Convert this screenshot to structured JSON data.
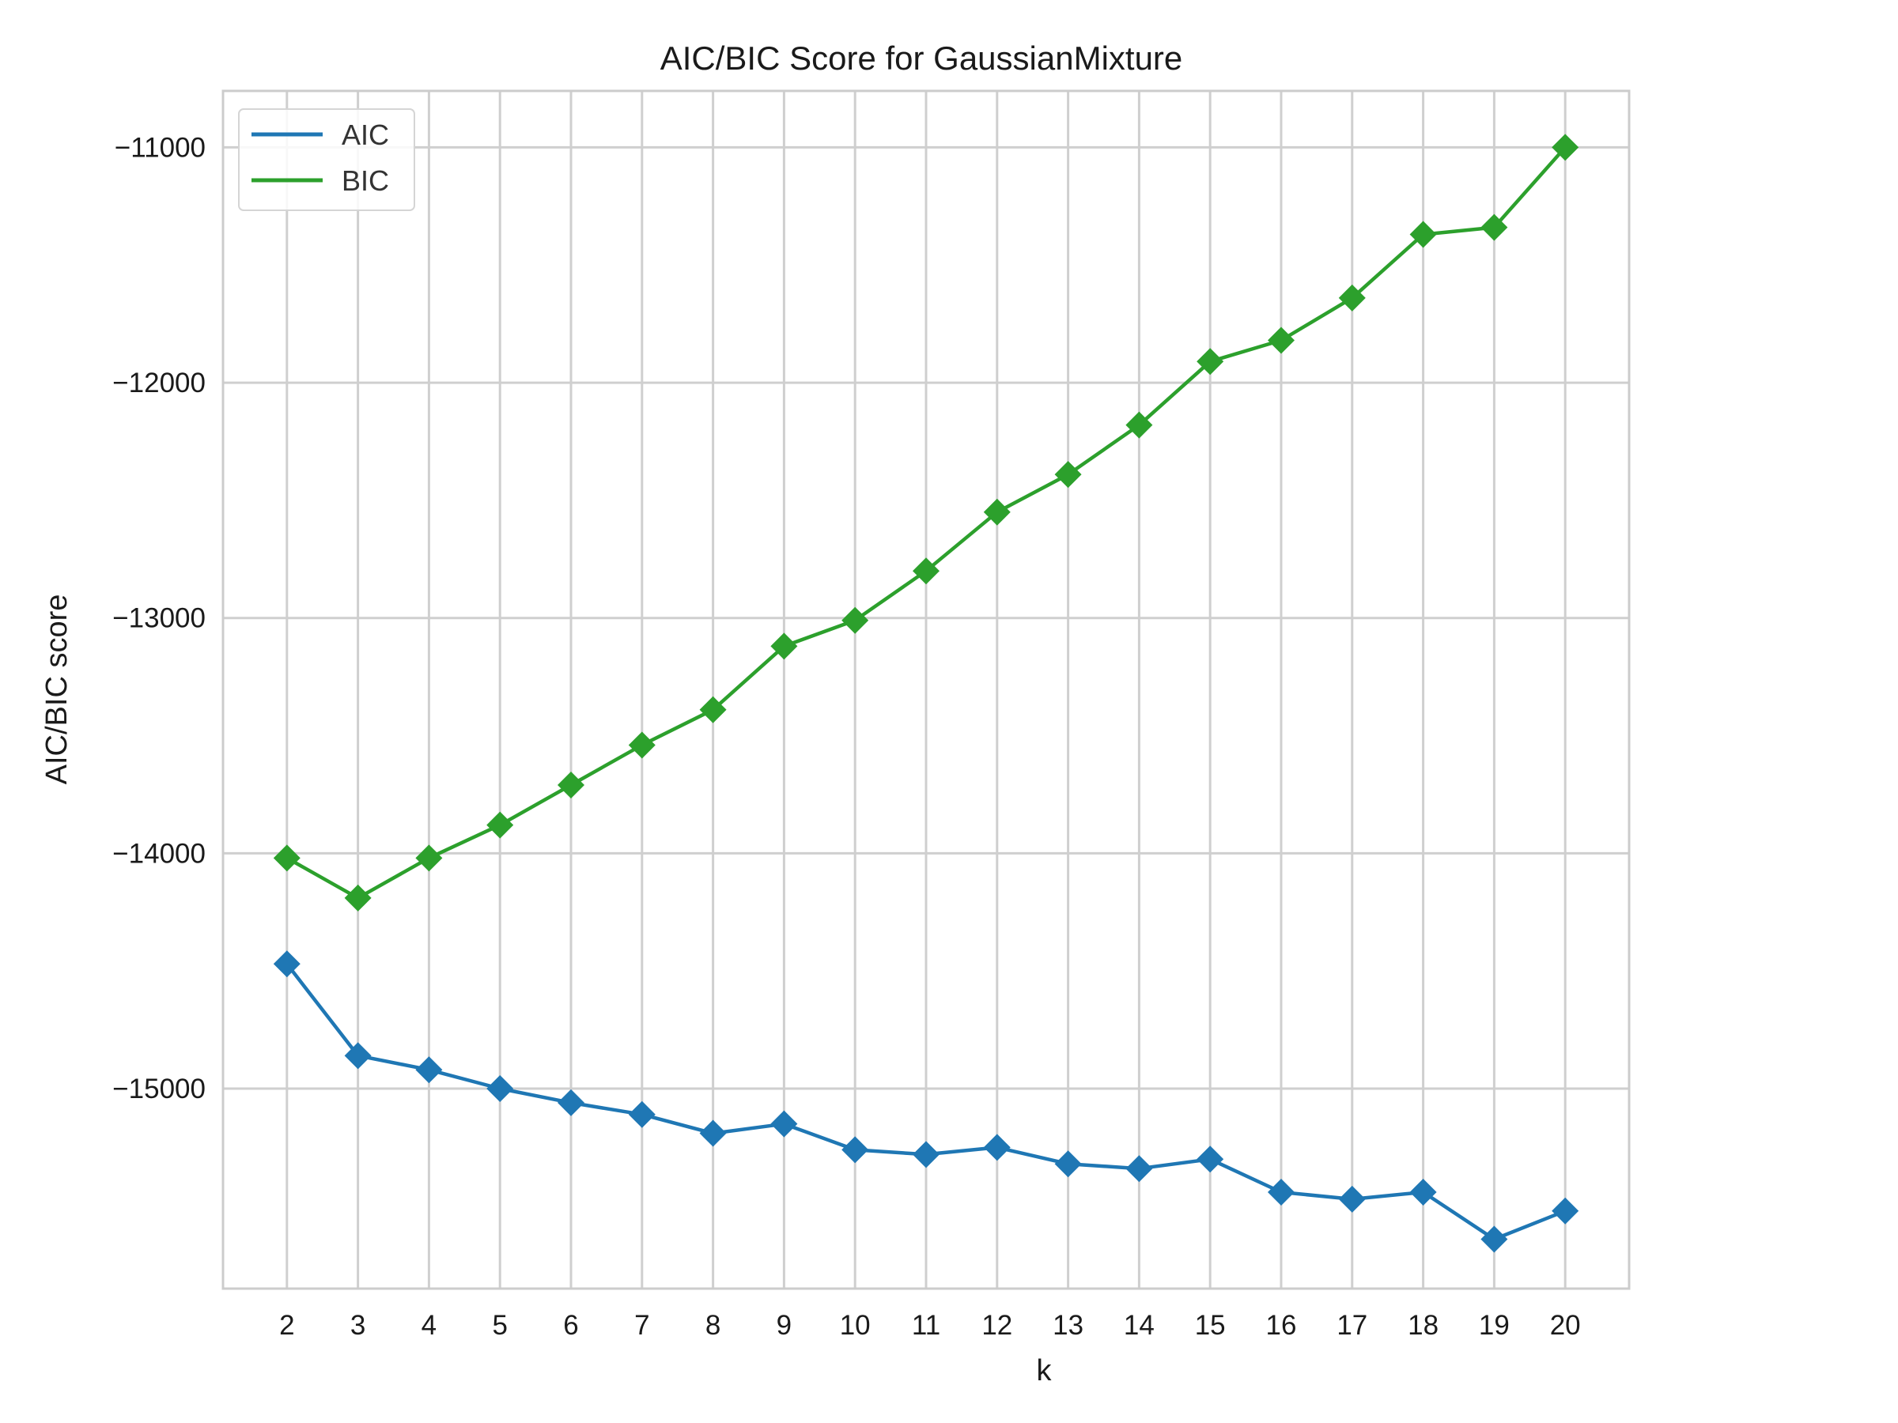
{
  "chart_data": {
    "type": "line",
    "title": "AIC/BIC Score for GaussianMixture",
    "xlabel": "k",
    "ylabel": "AIC/BIC score",
    "x": [
      2,
      3,
      4,
      5,
      6,
      7,
      8,
      9,
      10,
      11,
      12,
      13,
      14,
      15,
      16,
      17,
      18,
      19,
      20
    ],
    "xlim": [
      1.1,
      20.9
    ],
    "ylim": [
      -15850,
      -10760
    ],
    "x_ticks": [
      2,
      3,
      4,
      5,
      6,
      7,
      8,
      9,
      10,
      11,
      12,
      13,
      14,
      15,
      16,
      17,
      18,
      19,
      20
    ],
    "x_tick_labels": [
      "2",
      "3",
      "4",
      "5",
      "6",
      "7",
      "8",
      "9",
      "10",
      "11",
      "12",
      "13",
      "14",
      "15",
      "16",
      "17",
      "18",
      "19",
      "20"
    ],
    "y_ticks": [
      -11000,
      -12000,
      -13000,
      -14000,
      -15000
    ],
    "y_tick_labels": [
      "−11000",
      "−12000",
      "−13000",
      "−14000",
      "−15000"
    ],
    "grid": true,
    "legend_position": "top-left",
    "marker": "diamond",
    "series": [
      {
        "name": "AIC",
        "color": "#1f77b4",
        "values": [
          -14470,
          -14860,
          -14920,
          -15000,
          -15060,
          -15110,
          -15190,
          -15150,
          -15260,
          -15280,
          -15250,
          -15320,
          -15340,
          -15300,
          -15440,
          -15470,
          -15440,
          -15640,
          -15520
        ]
      },
      {
        "name": "BIC",
        "color": "#2ca02c",
        "values": [
          -14020,
          -14190,
          -14020,
          -13880,
          -13710,
          -13540,
          -13390,
          -13120,
          -13010,
          -12800,
          -12550,
          -12390,
          -12180,
          -11910,
          -11820,
          -11640,
          -11370,
          -11340,
          -11000
        ]
      }
    ]
  }
}
